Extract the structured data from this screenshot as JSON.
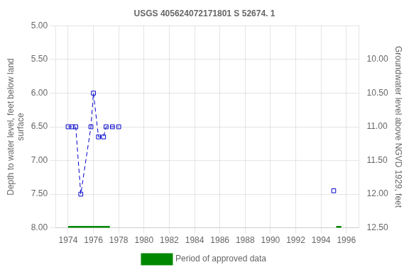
{
  "chart_data": {
    "type": "line",
    "title": "USGS 405624072171801 S 52674. 1",
    "ylabel": "Depth to water level, feet below land\nsurface",
    "y2label": "Groundwater level above NGVD 1929, feet",
    "xlim": [
      1973,
      1997
    ],
    "xticks": [
      1974,
      1976,
      1978,
      1980,
      1982,
      1984,
      1986,
      1988,
      1990,
      1992,
      1994,
      1996
    ],
    "ylim": [
      8.0,
      5.0
    ],
    "yticks": [
      {
        "value": 5.0,
        "label": "5.00"
      },
      {
        "value": 5.5,
        "label": "5.50"
      },
      {
        "value": 6.0,
        "label": "6.00"
      },
      {
        "value": 6.5,
        "label": "6.50"
      },
      {
        "value": 7.0,
        "label": "7.00"
      },
      {
        "value": 7.5,
        "label": "7.50"
      },
      {
        "value": 8.0,
        "label": "8.00"
      }
    ],
    "y2lim": [
      12.5,
      9.5
    ],
    "y2ticks": [
      {
        "value": 12.5,
        "label": "12.50"
      },
      {
        "value": 12.0,
        "label": "12.00"
      },
      {
        "value": 11.5,
        "label": "11.50"
      },
      {
        "value": 11.0,
        "label": "11.00"
      },
      {
        "value": 10.5,
        "label": "10.50"
      },
      {
        "value": 10.0,
        "label": "10.00"
      }
    ],
    "grid": true,
    "legend": "bottom",
    "series": [
      {
        "color": "#0000cc",
        "line_style": "dashed",
        "marker": "square",
        "x": [
          1974.0,
          1974.3,
          1974.6,
          1975.0,
          1975.8,
          1976.0,
          1976.4,
          1976.8,
          1977.0,
          1977.5,
          1978.0
        ],
        "values": [
          6.5,
          6.5,
          6.5,
          7.5,
          6.5,
          6.0,
          6.65,
          6.65,
          6.5,
          6.5,
          6.5
        ]
      },
      {
        "color": "#0000cc",
        "line_style": "none",
        "marker": "square",
        "x": [
          1995.0
        ],
        "values": [
          7.45
        ]
      },
      {
        "name": "Period of approved data",
        "color": "#008800",
        "periods": [
          {
            "start": 1974.0,
            "end": 1977.3,
            "value": 8.0
          },
          {
            "start": 1995.2,
            "end": 1995.6,
            "value": 8.0
          }
        ]
      }
    ]
  }
}
